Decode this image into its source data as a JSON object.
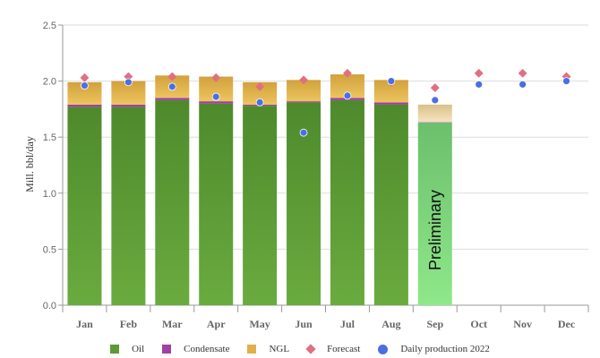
{
  "chart_data": {
    "type": "bar",
    "stacked": true,
    "ylabel": "Mill. bbl/day",
    "ylim": [
      0,
      2.5
    ],
    "yticks": [
      "0.0",
      "0.5",
      "1.0",
      "1.5",
      "2.0",
      "2.5"
    ],
    "ytick_values": [
      0,
      0.5,
      1.0,
      1.5,
      2.0,
      2.5
    ],
    "categories": [
      "Jan",
      "Feb",
      "Mar",
      "Apr",
      "May",
      "Jun",
      "Jul",
      "Aug",
      "Sep",
      "Oct",
      "Nov",
      "Dec"
    ],
    "series": [
      {
        "name": "Oil",
        "color": "#5d9a35",
        "values": [
          1.77,
          1.77,
          1.83,
          1.8,
          1.78,
          1.81,
          1.83,
          1.79,
          1.63,
          null,
          null,
          null
        ]
      },
      {
        "name": "Condensate",
        "color": "#a040a0",
        "values": [
          0.02,
          0.02,
          0.02,
          0.02,
          0.01,
          0.01,
          0.02,
          0.02,
          0.01,
          null,
          null,
          null
        ]
      },
      {
        "name": "NGL",
        "color": "#e2b04a",
        "values": [
          0.2,
          0.21,
          0.2,
          0.22,
          0.2,
          0.19,
          0.21,
          0.2,
          0.15,
          null,
          null,
          null
        ]
      }
    ],
    "markers": [
      {
        "name": "Forecast",
        "color": "#e07080",
        "shape": "diamond",
        "values": [
          2.03,
          2.04,
          2.04,
          2.03,
          1.95,
          2.01,
          2.07,
          1.99,
          1.94,
          2.07,
          2.07,
          2.04
        ]
      },
      {
        "name": "Daily production 2022",
        "color": "#4a6fe3",
        "shape": "circle",
        "values": [
          1.96,
          1.99,
          1.95,
          1.86,
          1.81,
          1.54,
          1.87,
          2.0,
          1.83,
          1.97,
          1.97,
          2.0
        ]
      }
    ],
    "preliminary_index": 8,
    "annotation": "Preliminary",
    "legend": [
      "Oil",
      "Condensate",
      "NGL",
      "Forecast",
      "Daily production 2022"
    ],
    "legend_position": "bottom",
    "grid": true
  }
}
